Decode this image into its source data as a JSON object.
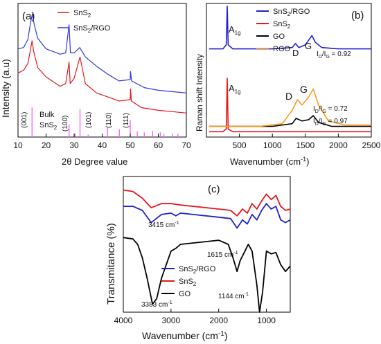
{
  "chart_data": [
    {
      "panel": "(a)",
      "type": "line",
      "title": "",
      "xlabel": "2θ Degree value",
      "ylabel": "Intensity (a.u)",
      "xlim": [
        10,
        70
      ],
      "x_ticks": [
        "10",
        "20",
        "30",
        "40",
        "50",
        "60",
        "70"
      ],
      "legend_placement": "top-center",
      "series": [
        {
          "name": "SnS2",
          "color": "#e8151b",
          "points": [
            [
              10,
              0.48
            ],
            [
              12,
              0.5
            ],
            [
              13.5,
              0.55
            ],
            [
              14.5,
              0.66
            ],
            [
              15,
              0.72
            ],
            [
              15.6,
              0.64
            ],
            [
              17,
              0.52
            ],
            [
              20,
              0.45
            ],
            [
              25,
              0.38
            ],
            [
              27,
              0.4
            ],
            [
              28.2,
              0.56
            ],
            [
              28.6,
              0.4
            ],
            [
              30,
              0.44
            ],
            [
              32.1,
              0.6
            ],
            [
              34,
              0.4
            ],
            [
              38,
              0.33
            ],
            [
              42,
              0.3
            ],
            [
              46,
              0.27
            ],
            [
              50,
              0.28
            ],
            [
              50.1,
              0.36
            ],
            [
              50.4,
              0.27
            ],
            [
              54,
              0.22
            ],
            [
              60,
              0.2
            ],
            [
              65,
              0.19
            ],
            [
              70,
              0.18
            ]
          ]
        },
        {
          "name": "SnS2/RGO",
          "color": "#3333dd",
          "points": [
            [
              10,
              0.66
            ],
            [
              12,
              0.67
            ],
            [
              13.5,
              0.73
            ],
            [
              14.5,
              0.86
            ],
            [
              15.1,
              0.92
            ],
            [
              15.8,
              0.84
            ],
            [
              17,
              0.74
            ],
            [
              20,
              0.66
            ],
            [
              25,
              0.62
            ],
            [
              27,
              0.63
            ],
            [
              28.2,
              0.84
            ],
            [
              28.7,
              0.63
            ],
            [
              30,
              0.63
            ],
            [
              32,
              0.67
            ],
            [
              34,
              0.6
            ],
            [
              38,
              0.53
            ],
            [
              42,
              0.47
            ],
            [
              46,
              0.42
            ],
            [
              50,
              0.43
            ],
            [
              50.1,
              0.49
            ],
            [
              50.5,
              0.42
            ],
            [
              55,
              0.37
            ],
            [
              60,
              0.35
            ],
            [
              65,
              0.34
            ],
            [
              70,
              0.33
            ]
          ]
        }
      ],
      "reference": {
        "name": "Bulk SnS2",
        "color": "#ff55ff",
        "peaks": [
          [
            15.0,
            0.95
          ],
          [
            28.2,
            0.4
          ],
          [
            30.3,
            0.12
          ],
          [
            32.1,
            0.9
          ],
          [
            35.0,
            0.08
          ],
          [
            41.9,
            0.3
          ],
          [
            46.1,
            0.25
          ],
          [
            50.0,
            0.55
          ],
          [
            52.5,
            0.18
          ],
          [
            55.0,
            0.15
          ],
          [
            58.0,
            0.2
          ],
          [
            60.7,
            0.15
          ],
          [
            62.0,
            0.1
          ],
          [
            65.0,
            0.12
          ],
          [
            67.0,
            0.1
          ]
        ]
      },
      "annotations": [
        "(001)",
        "(100)",
        "(101)",
        "(110)",
        "(111)",
        "Bulk",
        "SnS2"
      ]
    },
    {
      "panel": "(b)",
      "type": "line",
      "title": "",
      "xlabel": "Wavenumber (cm-1)",
      "ylabel": "Raman shift Intensity",
      "xlim": [
        0,
        2500
      ],
      "x_ticks": [
        "500",
        "1000",
        "1500",
        "2000",
        "2500"
      ],
      "legend_placement": "top-center",
      "series": [
        {
          "name": "SnS2/RGO",
          "color": "#1f1fd0",
          "points": [
            [
              40,
              0.66
            ],
            [
              250,
              0.66
            ],
            [
              300,
              0.69
            ],
            [
              315,
              0.98
            ],
            [
              330,
              0.69
            ],
            [
              400,
              0.66
            ],
            [
              1000,
              0.66
            ],
            [
              1300,
              0.67
            ],
            [
              1350,
              0.7
            ],
            [
              1400,
              0.67
            ],
            [
              1500,
              0.69
            ],
            [
              1600,
              0.76
            ],
            [
              1650,
              0.71
            ],
            [
              1750,
              0.67
            ],
            [
              2000,
              0.66
            ],
            [
              2500,
              0.66
            ]
          ]
        },
        {
          "name": "SnS2",
          "color": "#e8151b",
          "points": [
            [
              40,
              0.04
            ],
            [
              250,
              0.04
            ],
            [
              300,
              0.06
            ],
            [
              315,
              0.44
            ],
            [
              330,
              0.06
            ],
            [
              400,
              0.04
            ],
            [
              1500,
              0.04
            ],
            [
              2500,
              0.04
            ]
          ]
        },
        {
          "name": "GO",
          "color": "#000000",
          "points": [
            [
              40,
              0.08
            ],
            [
              1000,
              0.08
            ],
            [
              1300,
              0.1
            ],
            [
              1360,
              0.14
            ],
            [
              1450,
              0.12
            ],
            [
              1550,
              0.13
            ],
            [
              1620,
              0.16
            ],
            [
              1700,
              0.11
            ],
            [
              1900,
              0.08
            ],
            [
              2500,
              0.08
            ]
          ]
        },
        {
          "name": "RGO",
          "color": "#ff9a1a",
          "points": [
            [
              40,
              0.08
            ],
            [
              800,
              0.08
            ],
            [
              1150,
              0.1
            ],
            [
              1300,
              0.2
            ],
            [
              1380,
              0.28
            ],
            [
              1450,
              0.24
            ],
            [
              1550,
              0.3
            ],
            [
              1620,
              0.36
            ],
            [
              1700,
              0.24
            ],
            [
              1850,
              0.12
            ],
            [
              2100,
              0.09
            ],
            [
              2500,
              0.09
            ]
          ]
        }
      ],
      "annotations": [
        "A1g",
        "A1g",
        "D",
        "G",
        "D",
        "G",
        "ID/IG = 0.92",
        "ID/IG = 0.72",
        "ID/IG = 0.97"
      ]
    },
    {
      "panel": "(c)",
      "type": "line",
      "title": "",
      "xlabel": "Wavenumber (cm-1)",
      "ylabel": "Transmitance (%)",
      "xlim": [
        4000,
        500
      ],
      "x_ticks": [
        "4000",
        "3000",
        "2000",
        "1000"
      ],
      "legend_placement": "bottom-left",
      "series": [
        {
          "name": "SnS2/RGO",
          "color": "#1f1fd0",
          "points": [
            [
              4000,
              0.78
            ],
            [
              3800,
              0.78
            ],
            [
              3600,
              0.75
            ],
            [
              3415,
              0.66
            ],
            [
              3200,
              0.72
            ],
            [
              3000,
              0.73
            ],
            [
              2900,
              0.71
            ],
            [
              2800,
              0.73
            ],
            [
              2000,
              0.7
            ],
            [
              1750,
              0.69
            ],
            [
              1615,
              0.62
            ],
            [
              1500,
              0.68
            ],
            [
              1400,
              0.65
            ],
            [
              1300,
              0.72
            ],
            [
              1200,
              0.68
            ],
            [
              1100,
              0.75
            ],
            [
              1000,
              0.8
            ],
            [
              900,
              0.76
            ],
            [
              800,
              0.78
            ],
            [
              700,
              0.68
            ],
            [
              600,
              0.66
            ],
            [
              500,
              0.68
            ]
          ]
        },
        {
          "name": "SnS2",
          "color": "#e8151b",
          "points": [
            [
              4000,
              0.9
            ],
            [
              3800,
              0.89
            ],
            [
              3600,
              0.84
            ],
            [
              3415,
              0.77
            ],
            [
              3200,
              0.8
            ],
            [
              3000,
              0.8
            ],
            [
              2800,
              0.79
            ],
            [
              2000,
              0.76
            ],
            [
              1750,
              0.75
            ],
            [
              1615,
              0.71
            ],
            [
              1500,
              0.76
            ],
            [
              1400,
              0.73
            ],
            [
              1300,
              0.8
            ],
            [
              1200,
              0.76
            ],
            [
              1100,
              0.82
            ],
            [
              1000,
              0.87
            ],
            [
              900,
              0.83
            ],
            [
              800,
              0.86
            ],
            [
              700,
              0.78
            ],
            [
              600,
              0.75
            ],
            [
              500,
              0.76
            ]
          ]
        },
        {
          "name": "GO",
          "color": "#000000",
          "points": [
            [
              4000,
              0.55
            ],
            [
              3800,
              0.54
            ],
            [
              3700,
              0.5
            ],
            [
              3600,
              0.4
            ],
            [
              3500,
              0.25
            ],
            [
              3400,
              0.08
            ],
            [
              3383,
              0.06
            ],
            [
              3300,
              0.1
            ],
            [
              3200,
              0.25
            ],
            [
              3000,
              0.45
            ],
            [
              2900,
              0.47
            ],
            [
              2800,
              0.5
            ],
            [
              2000,
              0.53
            ],
            [
              1800,
              0.5
            ],
            [
              1700,
              0.4
            ],
            [
              1615,
              0.3
            ],
            [
              1550,
              0.38
            ],
            [
              1450,
              0.45
            ],
            [
              1380,
              0.5
            ],
            [
              1300,
              0.45
            ],
            [
              1200,
              0.2
            ],
            [
              1144,
              0.0
            ],
            [
              1080,
              0.15
            ],
            [
              1000,
              0.45
            ],
            [
              900,
              0.43
            ],
            [
              800,
              0.44
            ],
            [
              700,
              0.35
            ],
            [
              600,
              0.3
            ],
            [
              500,
              0.34
            ]
          ]
        }
      ],
      "annotations": [
        "3415 cm-1",
        "1615 cm-1",
        "3383 cm-1",
        "1144 cm-1"
      ]
    }
  ],
  "labels": {
    "a_panel": "(a)",
    "b_panel": "(b)",
    "c_panel": "(c)",
    "a_leg1": "SnS2",
    "a_leg2": "SnS2/RGO",
    "b_leg1": "SnS2/RGO",
    "b_leg2": "SnS2",
    "b_leg3": "GO",
    "b_leg4": "RGO",
    "c_leg1": "SnS2/RGO",
    "c_leg2": "SnS2",
    "c_leg3": "GO"
  }
}
